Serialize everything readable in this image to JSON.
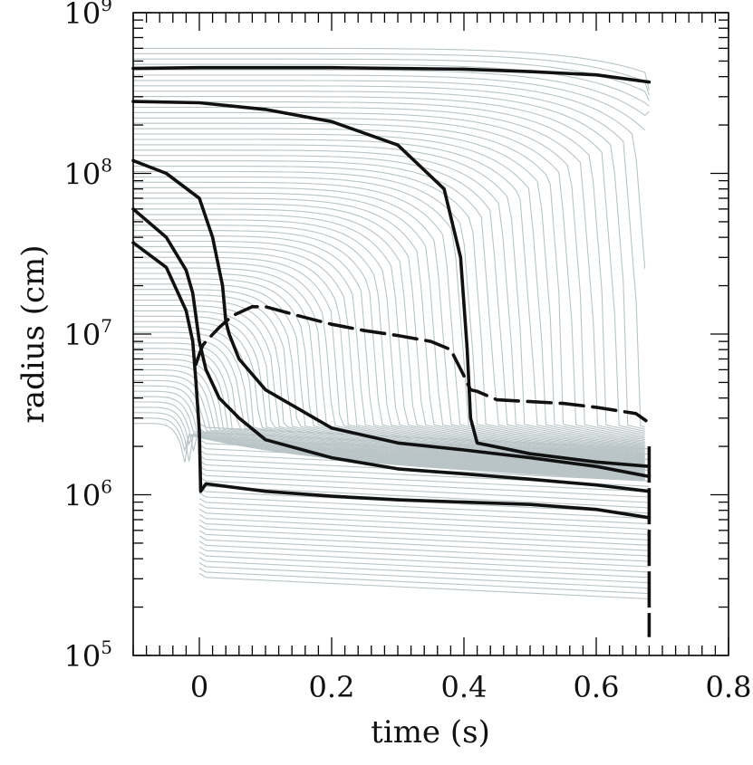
{
  "chart_data": {
    "type": "line",
    "xlabel": "time (s)",
    "ylabel": "radius (cm)",
    "xlim": [
      -0.1,
      0.8
    ],
    "ylim": [
      100000,
      1000000000
    ],
    "yscale": "log",
    "x_tick_labels": [
      "0",
      "0.2",
      "0.4",
      "0.6",
      "0.8"
    ],
    "y_tick_labels": [
      {
        "base": "10",
        "exp": "5"
      },
      {
        "base": "10",
        "exp": "6"
      },
      {
        "base": "10",
        "exp": "7"
      },
      {
        "base": "10",
        "exp": "8"
      },
      {
        "base": "10",
        "exp": "9"
      }
    ],
    "grid": false,
    "legend": "none",
    "colors": {
      "background_traces": "#b9c4c6",
      "highlight": "#111111",
      "axes": "#000000"
    },
    "background_traces": {
      "count": 100,
      "description_units": "mass-shell radius trajectories from t=-0.1 to t=0.68",
      "initial_radius_range_cm": [
        300000,
        600000000
      ]
    },
    "series": [
      {
        "style": "solid",
        "x": [
          -0.1,
          0.0,
          0.2,
          0.4,
          0.5,
          0.6,
          0.68
        ],
        "y": [
          450000000,
          455000000,
          455000000,
          445000000,
          430000000,
          410000000,
          370000000
        ]
      },
      {
        "style": "solid",
        "x": [
          -0.1,
          0.0,
          0.1,
          0.2,
          0.3,
          0.37,
          0.395,
          0.405,
          0.41,
          0.42,
          0.5,
          0.6,
          0.68
        ],
        "y": [
          280000000,
          275000000,
          250000000,
          210000000,
          150000000,
          80000000,
          30000000,
          8000000,
          3000000,
          2100000,
          1800000,
          1600000,
          1500000
        ]
      },
      {
        "style": "solid",
        "x": [
          -0.1,
          -0.05,
          0.0,
          0.02,
          0.035,
          0.04,
          0.045,
          0.06,
          0.1,
          0.2,
          0.3,
          0.4,
          0.5,
          0.6,
          0.68
        ],
        "y": [
          120000000,
          100000000,
          70000000,
          40000000,
          20000000,
          12000000,
          10000000,
          7000000,
          4500000,
          2600000,
          2100000,
          1900000,
          1700000,
          1500000,
          1300000
        ]
      },
      {
        "style": "solid",
        "x": [
          -0.1,
          -0.05,
          -0.02,
          -0.01,
          0.0,
          0.01,
          0.03,
          0.06,
          0.1,
          0.2,
          0.3,
          0.4,
          0.5,
          0.6,
          0.68
        ],
        "y": [
          60000000,
          40000000,
          25000000,
          18000000,
          9000000,
          6000000,
          4000000,
          3000000,
          2200000,
          1700000,
          1450000,
          1350000,
          1250000,
          1150000,
          1050000
        ]
      },
      {
        "style": "solid",
        "x": [
          -0.1,
          -0.05,
          -0.02,
          -0.01,
          -0.005,
          0.0,
          0.002,
          0.01,
          0.1,
          0.2,
          0.3,
          0.4,
          0.5,
          0.6,
          0.68
        ],
        "y": [
          37000000,
          26000000,
          14000000,
          9000000,
          5000000,
          2500000,
          1050000,
          1170000,
          1050000,
          980000,
          930000,
          900000,
          870000,
          810000,
          720000
        ]
      },
      {
        "style": "dashed",
        "x": [
          -0.005,
          0.0,
          0.005,
          0.01,
          0.03,
          0.05,
          0.08,
          0.1,
          0.15,
          0.2,
          0.25,
          0.3,
          0.35,
          0.38,
          0.4,
          0.41,
          0.42,
          0.45,
          0.5,
          0.55,
          0.6,
          0.64,
          0.66,
          0.68
        ],
        "y": [
          6500000,
          7500000,
          8500000,
          9000000,
          11000000,
          13000000,
          14800000,
          14800000,
          13000000,
          11500000,
          10500000,
          9800000,
          9000000,
          8000000,
          5500000,
          4500000,
          4400000,
          3900000,
          3800000,
          3700000,
          3500000,
          3300000,
          3200000,
          2800000
        ]
      }
    ]
  }
}
